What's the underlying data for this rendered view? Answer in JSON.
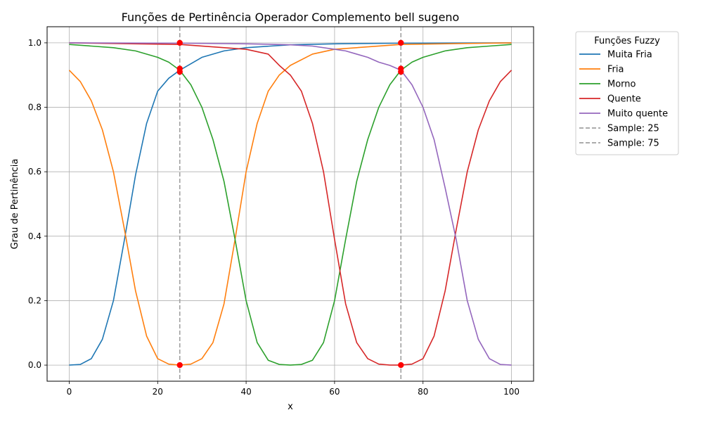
{
  "chart_data": {
    "type": "line",
    "title": "Funções de Pertinência Operador Complemento bell sugeno",
    "xlabel": "x",
    "ylabel": "Grau de Pertinência",
    "xlim": [
      -5,
      105
    ],
    "ylim": [
      -0.05,
      1.05
    ],
    "xticks": [
      0,
      20,
      40,
      60,
      80,
      100
    ],
    "xtick_labels": [
      "0",
      "20",
      "40",
      "60",
      "80",
      "100"
    ],
    "yticks": [
      0.0,
      0.2,
      0.4,
      0.6,
      0.8,
      1.0
    ],
    "ytick_labels": [
      "0.0",
      "0.2",
      "0.4",
      "0.6",
      "0.8",
      "1.0"
    ],
    "grid": true,
    "legend": {
      "title": "Funções Fuzzy",
      "placement": "outside-top-right"
    },
    "series": [
      {
        "name": "Muita Fria",
        "color": "#1f77b4",
        "x": [
          0,
          2.5,
          5,
          7.5,
          10,
          12.5,
          15,
          17.5,
          20,
          22.5,
          25,
          30,
          35,
          40,
          50,
          60,
          75,
          100
        ],
        "values": [
          0.0,
          0.002,
          0.02,
          0.08,
          0.2,
          0.39,
          0.59,
          0.75,
          0.85,
          0.89,
          0.915,
          0.955,
          0.975,
          0.985,
          0.994,
          0.997,
          0.999,
          1.0
        ]
      },
      {
        "name": "Fria",
        "color": "#ff7f0e",
        "x": [
          0,
          2.5,
          5,
          7.5,
          10,
          12.5,
          15,
          17.5,
          20,
          22.5,
          25,
          27.5,
          30,
          32.5,
          35,
          37.5,
          40,
          42.5,
          45,
          47.5,
          50,
          55,
          60,
          75,
          100
        ],
        "values": [
          0.915,
          0.88,
          0.82,
          0.73,
          0.6,
          0.42,
          0.23,
          0.09,
          0.02,
          0.003,
          0.0,
          0.003,
          0.02,
          0.07,
          0.19,
          0.39,
          0.6,
          0.75,
          0.85,
          0.9,
          0.93,
          0.965,
          0.98,
          0.995,
          1.0
        ]
      },
      {
        "name": "Morno",
        "color": "#2ca02c",
        "x": [
          0,
          5,
          10,
          15,
          20,
          22.5,
          25,
          27.5,
          30,
          32.5,
          35,
          37.5,
          40,
          42.5,
          45,
          47.5,
          50,
          52.5,
          55,
          57.5,
          60,
          62.5,
          65,
          67.5,
          70,
          72.5,
          75,
          77.5,
          80,
          85,
          90,
          95,
          100
        ],
        "values": [
          0.995,
          0.99,
          0.985,
          0.975,
          0.955,
          0.94,
          0.915,
          0.87,
          0.8,
          0.7,
          0.57,
          0.39,
          0.2,
          0.07,
          0.015,
          0.002,
          0.0,
          0.002,
          0.015,
          0.07,
          0.2,
          0.39,
          0.57,
          0.7,
          0.8,
          0.87,
          0.915,
          0.94,
          0.955,
          0.975,
          0.985,
          0.99,
          0.995
        ]
      },
      {
        "name": "Quente",
        "color": "#d62728",
        "x": [
          0,
          25,
          40,
          45,
          47.5,
          50,
          52.5,
          55,
          57.5,
          60,
          62.5,
          65,
          67.5,
          70,
          72.5,
          75,
          77.5,
          80,
          82.5,
          85,
          87.5,
          90,
          92.5,
          95,
          97.5,
          100
        ],
        "values": [
          1.0,
          0.995,
          0.98,
          0.965,
          0.93,
          0.9,
          0.85,
          0.75,
          0.6,
          0.39,
          0.19,
          0.07,
          0.02,
          0.003,
          0.0,
          0.0,
          0.003,
          0.02,
          0.09,
          0.23,
          0.42,
          0.6,
          0.73,
          0.82,
          0.88,
          0.915
        ]
      },
      {
        "name": "Muito quente",
        "color": "#9467bd",
        "x": [
          0,
          25,
          40,
          50,
          55,
          60,
          62.5,
          65,
          67.5,
          70,
          72.5,
          75,
          77.5,
          80,
          82.5,
          85,
          87.5,
          90,
          92.5,
          95,
          97.5,
          100
        ],
        "values": [
          1.0,
          0.999,
          0.997,
          0.994,
          0.99,
          0.98,
          0.975,
          0.965,
          0.955,
          0.94,
          0.93,
          0.915,
          0.87,
          0.8,
          0.7,
          0.55,
          0.39,
          0.2,
          0.08,
          0.02,
          0.002,
          0.0
        ]
      }
    ],
    "samples": [
      {
        "name": "Sample: 25",
        "x": 25,
        "color": "#a0a0a0",
        "points": [
          1.0,
          0.92,
          0.91,
          0.0
        ]
      },
      {
        "name": "Sample: 75",
        "x": 75,
        "color": "#a0a0a0",
        "points": [
          1.0,
          0.92,
          0.91,
          0.0
        ]
      }
    ],
    "marker_color": "#ff0000"
  }
}
